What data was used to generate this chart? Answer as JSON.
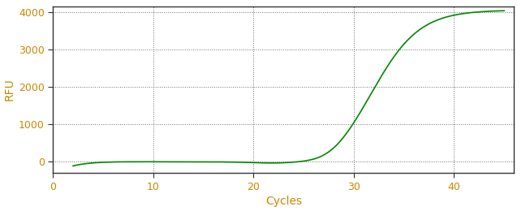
{
  "xlabel": "Cycles",
  "ylabel": "RFU",
  "line_color": "#008800",
  "line_width": 1.2,
  "background_color": "#ffffff",
  "grid_color": "#333333",
  "tick_label_color": "#cc8800",
  "axis_label_color": "#cc8800",
  "spine_color": "#333333",
  "xlim": [
    0,
    46
  ],
  "ylim": [
    -300,
    4150
  ],
  "xticks": [
    0,
    10,
    20,
    30,
    40
  ],
  "yticks": [
    0,
    1000,
    2000,
    3000,
    4000
  ],
  "figsize": [
    6.53,
    2.6
  ],
  "dpi": 100,
  "xlabel_fontsize": 10,
  "ylabel_fontsize": 10,
  "tick_fontsize": 9
}
